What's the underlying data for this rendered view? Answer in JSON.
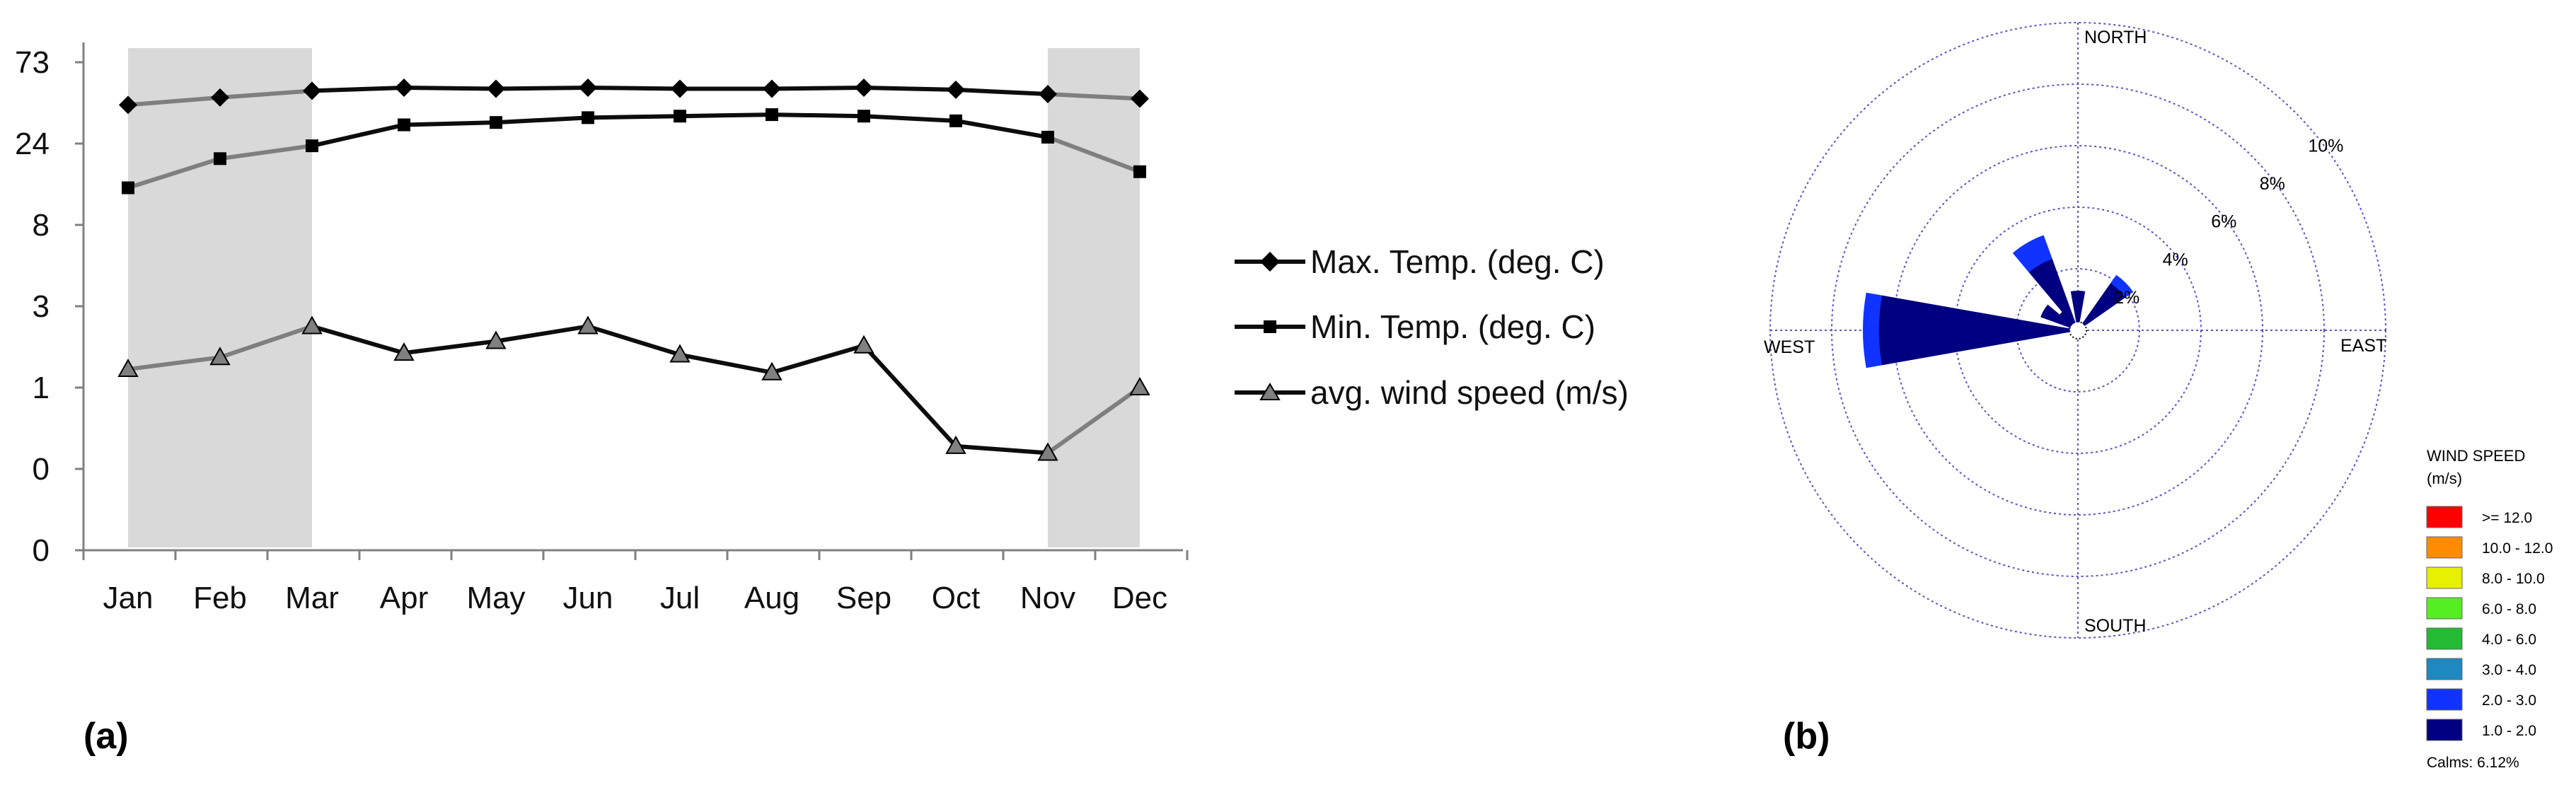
{
  "panel_labels": {
    "a": "(a)",
    "b": "(b)"
  },
  "chart_data": [
    {
      "type": "line",
      "categories": [
        "Jan",
        "Feb",
        "Mar",
        "Apr",
        "May",
        "Jun",
        "Jul",
        "Aug",
        "Sep",
        "Oct",
        "Nov",
        "Dec"
      ],
      "y_tick_labels": [
        "0",
        "0",
        "1",
        "3",
        "8",
        "24",
        "73"
      ],
      "y_scale": "log (printed labels rounded)",
      "series": [
        {
          "name": "Max. Temp. (deg. C)",
          "marker": "diamond",
          "values": [
            27.5,
            30.5,
            33.5,
            35.0,
            34.5,
            35.0,
            34.5,
            34.5,
            35.0,
            34.0,
            32.0,
            30.0
          ]
        },
        {
          "name": "Min. Temp. (deg. C)",
          "marker": "square",
          "values": [
            8.5,
            12.9,
            15.5,
            20.8,
            21.5,
            23.0,
            23.5,
            24.0,
            23.5,
            22.0,
            17.5,
            10.7
          ]
        },
        {
          "name": "avg. wind speed (m/s)",
          "marker": "triangle",
          "values": [
            0.65,
            0.77,
            1.2,
            0.82,
            0.97,
            1.2,
            0.8,
            0.62,
            0.91,
            0.22,
            0.2,
            0.5
          ]
        }
      ],
      "shaded_months": [
        [
          "Jan",
          "Mar"
        ],
        [
          "Nov",
          "Dec"
        ]
      ],
      "colors": {
        "shade": "#d9d9d9",
        "line_dark": "#0d0d0d",
        "line_gray": "#7f7f7f",
        "axis": "#808080"
      },
      "legend_position": "right"
    },
    {
      "type": "wind_rose",
      "directions": {
        "north": "NORTH",
        "south": "SOUTH",
        "east": "EAST",
        "west": "WEST"
      },
      "ring_labels": [
        "2%",
        "4%",
        "6%",
        "8%",
        "10%"
      ],
      "ring_values": [
        2,
        4,
        6,
        8,
        10
      ],
      "petals": [
        {
          "direction_deg": 270,
          "bins": [
            {
              "range": "1.0 - 2.0",
              "pct": 6.2
            },
            {
              "range": "2.0 - 3.0",
              "pct": 0.5
            }
          ]
        },
        {
          "direction_deg": 330,
          "bins": [
            {
              "range": "1.0 - 2.0",
              "pct": 2.2
            },
            {
              "range": "2.0 - 3.0",
              "pct": 0.8
            }
          ]
        },
        {
          "direction_deg": 45,
          "bins": [
            {
              "range": "1.0 - 2.0",
              "pct": 1.6
            },
            {
              "range": "2.0 - 3.0",
              "pct": 0.3
            }
          ]
        },
        {
          "direction_deg": 0,
          "bins": [
            {
              "range": "1.0 - 2.0",
              "pct": 1.0
            }
          ]
        },
        {
          "direction_deg": 300,
          "bins": [
            {
              "range": "1.0 - 2.0",
              "pct": 1.0
            }
          ]
        },
        {
          "direction_deg": 315,
          "bins": [
            {
              "range": "1.0 - 2.0",
              "pct": 0.5
            }
          ]
        }
      ],
      "legend": {
        "title_line1": "WIND SPEED",
        "title_line2": "(m/s)",
        "items": [
          {
            "label": ">= 12.0",
            "color": "#ff0000"
          },
          {
            "label": "10.0 - 12.0",
            "color": "#ff8c00"
          },
          {
            "label": "8.0 - 10.0",
            "color": "#e6f000"
          },
          {
            "label": "6.0 -  8.0",
            "color": "#55ee22"
          },
          {
            "label": "4.0 -  6.0",
            "color": "#22bb33"
          },
          {
            "label": "3.0 -  4.0",
            "color": "#1e88c0"
          },
          {
            "label": "2.0 -  3.0",
            "color": "#1133ff"
          },
          {
            "label": "1.0 -  2.0",
            "color": "#000080"
          }
        ],
        "calms": "Calms: 6.12%"
      },
      "colors": {
        "grid": "#5555cc"
      }
    }
  ]
}
